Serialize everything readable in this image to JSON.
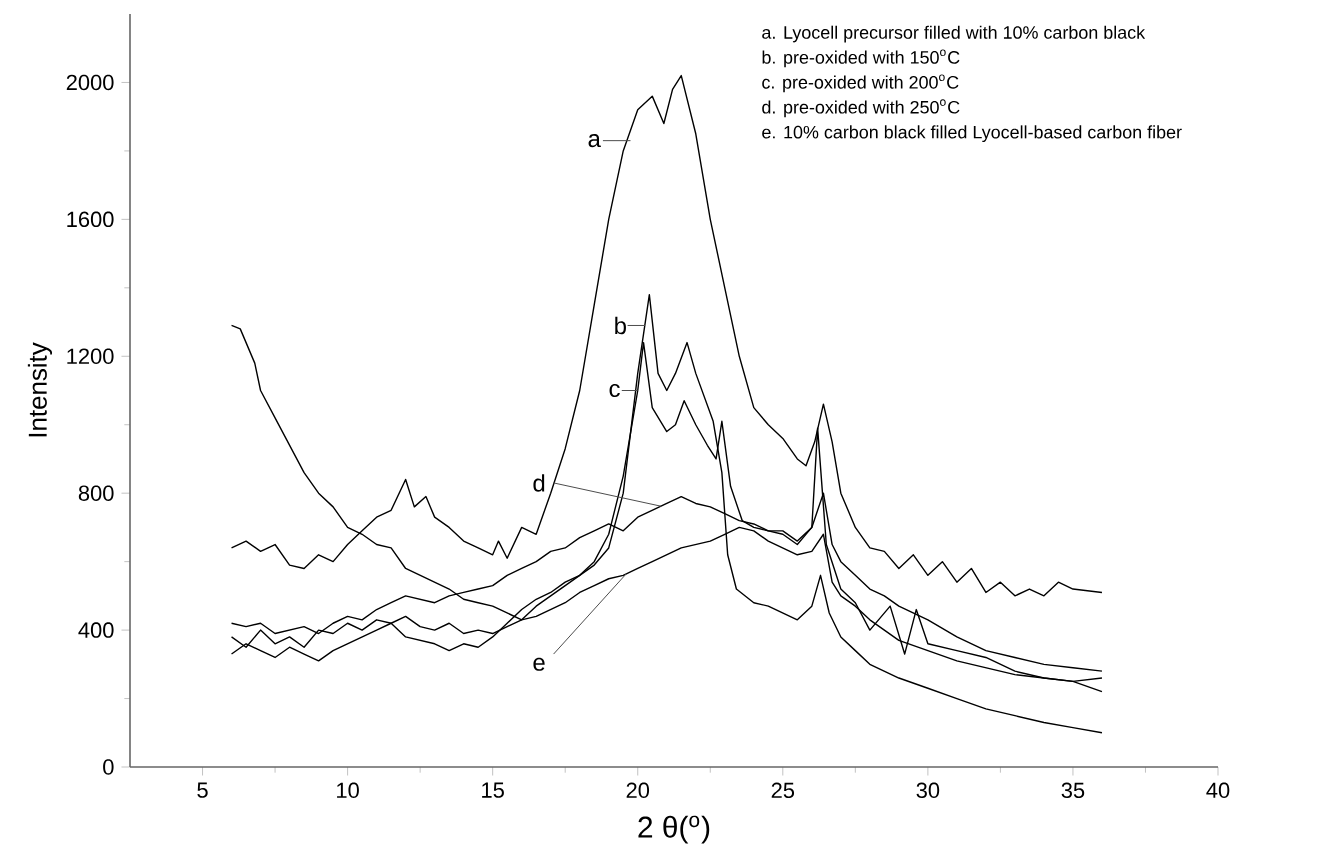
{
  "chart_data": {
    "type": "line",
    "xlabel": "2 θ($^{o}$)",
    "ylabel": "Intensity",
    "xlim": [
      2.5,
      40
    ],
    "ylim": [
      0,
      2200
    ],
    "xticks": [
      5,
      10,
      15,
      20,
      25,
      30,
      35,
      40
    ],
    "yticks": [
      0,
      400,
      800,
      1200,
      1600,
      2000
    ],
    "grid": false,
    "marker": "none",
    "line_style": "solid",
    "annotations": [
      "a. Lyocell precursor filled with 10% carbon black",
      "b. pre-oxided with 150$^{o}$C",
      "c. pre-oxided with 200$^{o}$C",
      "d. pre-oxided with 250$^{o}$C",
      "e. 10% carbon black filled Lyocell-based carbon fiber"
    ],
    "series": [
      {
        "name": "a",
        "color": "#000000",
        "x": [
          6,
          6.5,
          7,
          7.5,
          8,
          8.5,
          9,
          9.5,
          10,
          10.5,
          11,
          11.5,
          12,
          12.3,
          12.7,
          13,
          13.5,
          14,
          14.5,
          15,
          15.2,
          15.5,
          16,
          16.5,
          17,
          17.5,
          18,
          18.5,
          19,
          19.5,
          20,
          20.5,
          20.9,
          21.2,
          21.5,
          22,
          22.5,
          23,
          23.5,
          24,
          24.5,
          25,
          25.5,
          25.8,
          26.1,
          26.4,
          26.7,
          27,
          27.5,
          28,
          28.5,
          29,
          29.5,
          30,
          30.5,
          31,
          31.5,
          32,
          32.5,
          33,
          33.5,
          34,
          34.5,
          35,
          36
        ],
        "values": [
          640,
          660,
          630,
          650,
          590,
          580,
          620,
          600,
          650,
          690,
          730,
          750,
          840,
          760,
          790,
          730,
          700,
          660,
          640,
          620,
          660,
          610,
          700,
          680,
          800,
          930,
          1100,
          1350,
          1600,
          1800,
          1920,
          1960,
          1880,
          1980,
          2020,
          1850,
          1600,
          1400,
          1200,
          1050,
          1000,
          960,
          900,
          880,
          950,
          1060,
          950,
          800,
          700,
          640,
          630,
          580,
          620,
          560,
          600,
          540,
          580,
          510,
          540,
          500,
          520,
          500,
          540,
          520,
          510
        ]
      },
      {
        "name": "b",
        "color": "#000000",
        "x": [
          6,
          6.5,
          7,
          7.5,
          8,
          8.5,
          9,
          9.5,
          10,
          10.5,
          11,
          11.5,
          12,
          12.5,
          13,
          13.5,
          14,
          14.5,
          15,
          15.5,
          16,
          16.5,
          17,
          17.5,
          18,
          18.5,
          19,
          19.5,
          20,
          20.4,
          20.7,
          21,
          21.3,
          21.7,
          22,
          22.3,
          22.6,
          22.9,
          23.1,
          23.4,
          24,
          24.5,
          25,
          25.5,
          26,
          26.3,
          26.6,
          27,
          27.5,
          28,
          29,
          30,
          31,
          32,
          33,
          34,
          35,
          36
        ],
        "values": [
          380,
          350,
          400,
          360,
          380,
          350,
          400,
          390,
          420,
          400,
          430,
          420,
          440,
          410,
          400,
          420,
          390,
          400,
          390,
          410,
          430,
          470,
          500,
          530,
          560,
          590,
          640,
          800,
          1150,
          1380,
          1150,
          1100,
          1150,
          1240,
          1150,
          1080,
          1010,
          860,
          620,
          520,
          480,
          470,
          450,
          430,
          470,
          560,
          450,
          380,
          340,
          300,
          260,
          230,
          200,
          170,
          150,
          130,
          115,
          100
        ]
      },
      {
        "name": "c",
        "color": "#000000",
        "x": [
          6,
          6.5,
          7,
          7.5,
          8,
          8.5,
          9,
          9.5,
          10,
          10.5,
          11,
          11.5,
          12,
          12.5,
          13,
          13.5,
          14,
          14.5,
          15,
          15.5,
          16,
          16.5,
          17,
          17.5,
          18,
          18.5,
          19,
          19.5,
          20,
          20.2,
          20.5,
          21,
          21.3,
          21.6,
          22,
          22.4,
          22.7,
          22.9,
          23.2,
          23.6,
          24,
          24.5,
          25,
          25.5,
          26,
          26.2,
          26.5,
          27,
          27.5,
          28,
          28.7,
          29.2,
          29.6,
          30,
          31,
          32,
          33,
          34,
          35,
          36
        ],
        "values": [
          330,
          360,
          340,
          320,
          350,
          330,
          310,
          340,
          360,
          380,
          400,
          420,
          380,
          370,
          360,
          340,
          360,
          350,
          380,
          420,
          460,
          490,
          510,
          540,
          560,
          600,
          680,
          850,
          1100,
          1240,
          1050,
          980,
          1000,
          1070,
          1000,
          940,
          900,
          1010,
          820,
          720,
          700,
          690,
          680,
          650,
          700,
          990,
          650,
          520,
          480,
          400,
          470,
          330,
          460,
          360,
          340,
          320,
          280,
          260,
          250,
          220
        ]
      },
      {
        "name": "d",
        "color": "#000000",
        "x": [
          6,
          6.5,
          7,
          7.5,
          8,
          8.5,
          9,
          9.5,
          10,
          10.5,
          11,
          11.5,
          12,
          12.5,
          13,
          13.5,
          14,
          14.5,
          15,
          15.5,
          16,
          16.5,
          17,
          17.5,
          18,
          18.5,
          19,
          19.5,
          20,
          20.5,
          21,
          21.5,
          22,
          22.5,
          23,
          23.5,
          24,
          24.5,
          25,
          25.5,
          26,
          26.4,
          26.7,
          27,
          27.5,
          28,
          28.5,
          29,
          30,
          31,
          32,
          33,
          34,
          35,
          36
        ],
        "values": [
          420,
          410,
          420,
          390,
          400,
          410,
          390,
          420,
          440,
          430,
          460,
          480,
          500,
          490,
          480,
          500,
          510,
          520,
          530,
          560,
          580,
          600,
          630,
          640,
          670,
          690,
          710,
          690,
          730,
          750,
          770,
          790,
          770,
          760,
          740,
          720,
          710,
          690,
          690,
          660,
          700,
          800,
          650,
          600,
          560,
          520,
          500,
          470,
          430,
          380,
          340,
          320,
          300,
          290,
          280
        ]
      },
      {
        "name": "e",
        "color": "#000000",
        "x": [
          6,
          6.3,
          6.8,
          7,
          7.5,
          8,
          8.5,
          9,
          9.5,
          10,
          10.5,
          11,
          11.5,
          12,
          12.5,
          13,
          13.5,
          14,
          14.5,
          15,
          15.5,
          16,
          16.5,
          17,
          17.5,
          18,
          18.5,
          19,
          19.5,
          20,
          20.5,
          21,
          21.5,
          22,
          22.5,
          23,
          23.5,
          24,
          24.5,
          25,
          25.5,
          26,
          26.4,
          26.7,
          27,
          27.5,
          28,
          28.5,
          29,
          30,
          31,
          32,
          33,
          34,
          35,
          36
        ],
        "values": [
          1290,
          1280,
          1180,
          1100,
          1020,
          940,
          860,
          800,
          760,
          700,
          680,
          650,
          640,
          580,
          560,
          540,
          520,
          490,
          480,
          470,
          450,
          430,
          440,
          460,
          480,
          510,
          530,
          550,
          560,
          580,
          600,
          620,
          640,
          650,
          660,
          680,
          700,
          690,
          660,
          640,
          620,
          630,
          680,
          540,
          500,
          470,
          430,
          400,
          370,
          340,
          310,
          290,
          270,
          260,
          250,
          260
        ]
      }
    ]
  }
}
